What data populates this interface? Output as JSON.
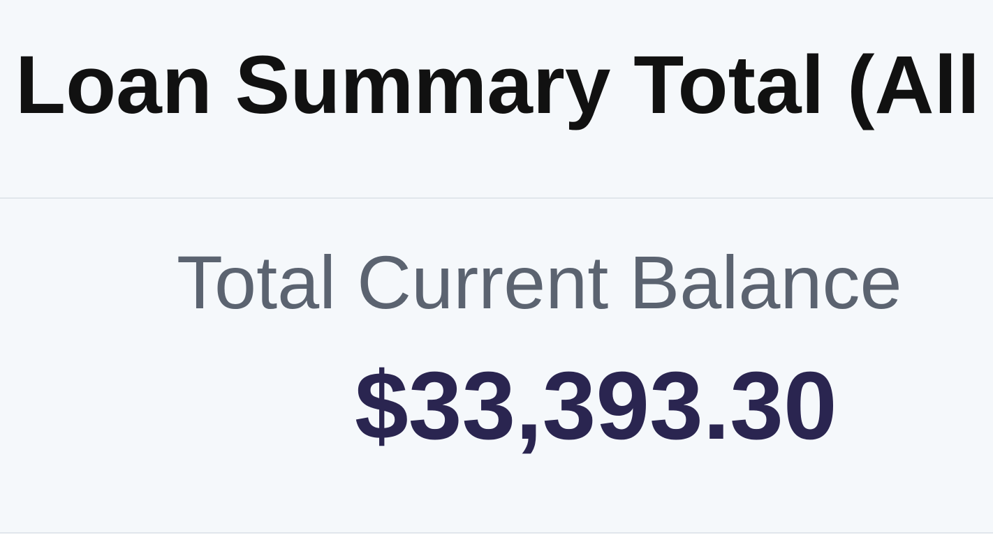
{
  "summary": {
    "title": "Loan Summary Total (All L",
    "balance_label": "Total Current Balance",
    "balance_value": "$33,393.30"
  },
  "colors": {
    "background": "#f5f8fb",
    "title": "#111111",
    "label": "#5b6370",
    "amount": "#2a2550",
    "divider": "#e1e6ec"
  }
}
